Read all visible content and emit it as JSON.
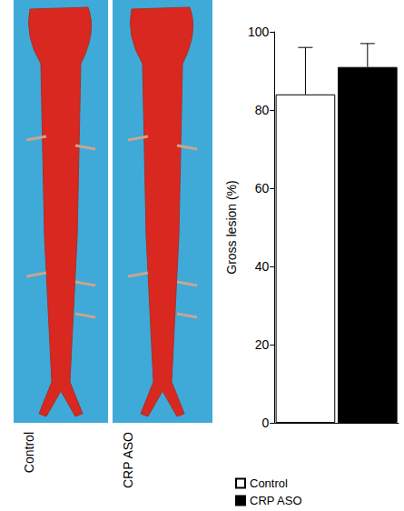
{
  "chart_data": {
    "type": "bar",
    "categories": [
      "Control",
      "CRP ASO"
    ],
    "series": [
      {
        "name": "Control",
        "color": "#ffffff",
        "values": [
          84,
          null
        ],
        "errors": [
          12,
          null
        ]
      },
      {
        "name": "CRP ASO",
        "color": "#000000",
        "values": [
          null,
          91
        ],
        "errors": [
          null,
          6
        ]
      }
    ],
    "y_label": "Gross lesion (%)",
    "ylim": [
      0,
      100
    ],
    "yticks": [
      0,
      20,
      40,
      60,
      80,
      100
    ],
    "grid": false,
    "legend": "bottom-left",
    "tick_labels": "y"
  }
}
